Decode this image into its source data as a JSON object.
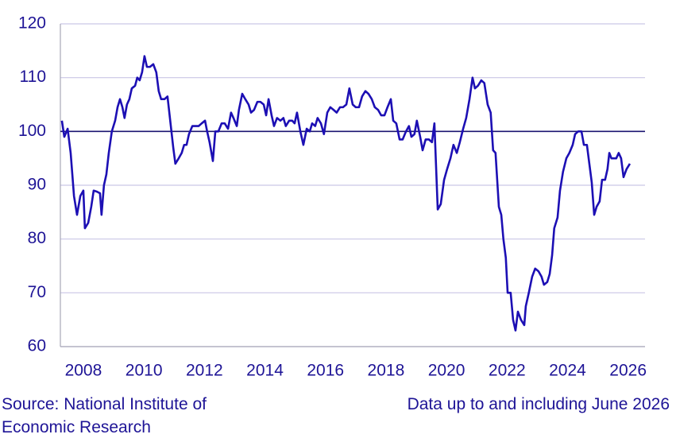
{
  "chart_data": {
    "type": "line",
    "source": "Source: National Institute of Economic Research",
    "note": "Data up to and including June 2026",
    "xlim": [
      2007.74,
      2027.06
    ],
    "xticks": [
      {
        "value": 2008.5,
        "label": "2008"
      },
      {
        "value": 2010.5,
        "label": "2010"
      },
      {
        "value": 2012.5,
        "label": "2012"
      },
      {
        "value": 2014.5,
        "label": "2014"
      },
      {
        "value": 2016.5,
        "label": "2016"
      },
      {
        "value": 2018.5,
        "label": "2018"
      },
      {
        "value": 2020.5,
        "label": "2020"
      },
      {
        "value": 2022.5,
        "label": "2022"
      },
      {
        "value": 2024.5,
        "label": "2024"
      },
      {
        "value": 2026.5,
        "label": "2026"
      }
    ],
    "ylim": [
      60,
      120
    ],
    "yticks": [
      60,
      70,
      80,
      90,
      100,
      110,
      120
    ],
    "grid": true,
    "reference_line": 100,
    "x": [
      2007.79,
      2007.87,
      2007.98,
      2008.08,
      2008.19,
      2008.29,
      2008.4,
      2008.5,
      2008.55,
      2008.66,
      2008.76,
      2008.84,
      2008.95,
      2009.05,
      2009.1,
      2009.18,
      2009.26,
      2009.34,
      2009.44,
      2009.55,
      2009.63,
      2009.71,
      2009.79,
      2009.86,
      2009.94,
      2010.02,
      2010.1,
      2010.21,
      2010.28,
      2010.36,
      2010.44,
      2010.52,
      2010.6,
      2010.7,
      2010.81,
      2010.91,
      2010.99,
      2011.07,
      2011.18,
      2011.28,
      2011.39,
      2011.47,
      2011.54,
      2011.65,
      2011.75,
      2011.83,
      2011.91,
      2011.99,
      2012.1,
      2012.2,
      2012.31,
      2012.41,
      2012.52,
      2012.59,
      2012.67,
      2012.78,
      2012.86,
      2012.96,
      2013.07,
      2013.17,
      2013.28,
      2013.38,
      2013.46,
      2013.57,
      2013.64,
      2013.75,
      2013.85,
      2013.96,
      2014.04,
      2014.14,
      2014.25,
      2014.35,
      2014.46,
      2014.54,
      2014.62,
      2014.72,
      2014.8,
      2014.9,
      2015.01,
      2015.11,
      2015.19,
      2015.3,
      2015.4,
      2015.48,
      2015.56,
      2015.67,
      2015.77,
      2015.88,
      2015.98,
      2016.06,
      2016.16,
      2016.24,
      2016.35,
      2016.45,
      2016.56,
      2016.66,
      2016.77,
      2016.87,
      2016.98,
      2017.08,
      2017.19,
      2017.29,
      2017.4,
      2017.5,
      2017.61,
      2017.71,
      2017.82,
      2017.92,
      2018.03,
      2018.13,
      2018.24,
      2018.34,
      2018.45,
      2018.55,
      2018.66,
      2018.74,
      2018.84,
      2018.95,
      2019.05,
      2019.16,
      2019.26,
      2019.34,
      2019.44,
      2019.52,
      2019.63,
      2019.71,
      2019.81,
      2019.92,
      2020.02,
      2020.1,
      2020.21,
      2020.31,
      2020.42,
      2020.52,
      2020.63,
      2020.73,
      2020.84,
      2020.94,
      2021.05,
      2021.15,
      2021.26,
      2021.36,
      2021.44,
      2021.54,
      2021.65,
      2021.75,
      2021.86,
      2021.96,
      2022.04,
      2022.12,
      2022.23,
      2022.31,
      2022.38,
      2022.46,
      2022.52,
      2022.62,
      2022.7,
      2022.78,
      2022.86,
      2022.96,
      2023.07,
      2023.12,
      2023.22,
      2023.33,
      2023.43,
      2023.54,
      2023.64,
      2023.72,
      2023.83,
      2023.91,
      2023.99,
      2024.06,
      2024.17,
      2024.25,
      2024.35,
      2024.46,
      2024.56,
      2024.67,
      2024.75,
      2024.85,
      2024.96,
      2025.04,
      2025.14,
      2025.22,
      2025.3,
      2025.38,
      2025.46,
      2025.56,
      2025.64,
      2025.74,
      2025.82,
      2025.88,
      2025.95,
      2026.03,
      2026.11,
      2026.19,
      2026.27,
      2026.35,
      2026.45,
      2026.56
    ],
    "series": [
      {
        "color": "#1c0fb4",
        "values": [
          102,
          99,
          100.5,
          96,
          88,
          84.5,
          88,
          89,
          82,
          83,
          86,
          89,
          88.8,
          88.5,
          84.5,
          90,
          92,
          96,
          100,
          102,
          104.5,
          106,
          104.5,
          102.5,
          105,
          106,
          108,
          108.5,
          110,
          109.5,
          111,
          114,
          112,
          112,
          112.5,
          111,
          107.5,
          106,
          106,
          106.5,
          101,
          97,
          94,
          95,
          96,
          97.5,
          97.5,
          99.5,
          101,
          101,
          101,
          101.5,
          102,
          100,
          98,
          94.5,
          100,
          100,
          101.5,
          101.5,
          100.5,
          103.5,
          102.5,
          101,
          104,
          107,
          106,
          105,
          103.5,
          104,
          105.5,
          105.5,
          105,
          103,
          106,
          103,
          101,
          102.5,
          102,
          102.5,
          101,
          102,
          102,
          101.5,
          103.5,
          100,
          97.5,
          100.5,
          100,
          101.5,
          101,
          102.5,
          101.5,
          99.5,
          103.5,
          104.5,
          104,
          103.5,
          104.5,
          104.5,
          105,
          108,
          105,
          104.5,
          104.5,
          106.5,
          107.5,
          107,
          106,
          104.5,
          104,
          103,
          103,
          104.5,
          106,
          102,
          101.5,
          98.5,
          98.5,
          100,
          101,
          99,
          99.5,
          102,
          99,
          96.5,
          98.5,
          98.5,
          98,
          101.5,
          85.5,
          86.5,
          91,
          93,
          95,
          97.5,
          96,
          98,
          100.5,
          102.5,
          106,
          110,
          108,
          108.5,
          109.5,
          109,
          105,
          103.5,
          96.5,
          96,
          86,
          84.5,
          80,
          76.5,
          70,
          70,
          65,
          63,
          66.5,
          65,
          64,
          67.5,
          70,
          73,
          74.5,
          74,
          73,
          71.5,
          72,
          73.5,
          77,
          82,
          84,
          89,
          92.5,
          95,
          96,
          97.5,
          99.5,
          100,
          100,
          97.5,
          97.5,
          94,
          90.5,
          84.5,
          86,
          87,
          91,
          91,
          93,
          96,
          95,
          95,
          95,
          96,
          95,
          91.5,
          93,
          94
        ]
      }
    ]
  }
}
